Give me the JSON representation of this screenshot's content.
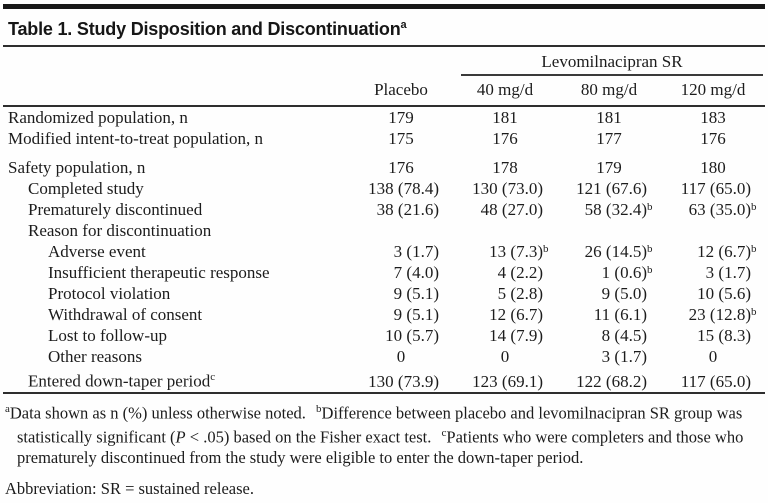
{
  "title": {
    "text": "Table 1. Study Disposition and Discontinuation",
    "superscript": "a"
  },
  "header": {
    "spanner": "Levomilnacipran SR",
    "stub": "",
    "columns": [
      "Placebo",
      "40 mg/d",
      "80 mg/d",
      "120 mg/d"
    ]
  },
  "table": {
    "rows": [
      {
        "label": "Randomized population, n",
        "indent": 0,
        "values": [
          "179",
          "181",
          "181",
          "183"
        ]
      },
      {
        "label": "Modified intent-to-treat population, n",
        "indent": 0,
        "values": [
          "175",
          "176",
          "177",
          "176"
        ]
      },
      {
        "label": "Safety population, n",
        "indent": 0,
        "gap_before": true,
        "values": [
          "176",
          "178",
          "179",
          "180"
        ]
      },
      {
        "label": "Completed study",
        "indent": 1,
        "values": [
          "138 (78.4)",
          "130 (73.0)",
          "121 (67.6)",
          "117 (65.0)"
        ]
      },
      {
        "label": "Prematurely discontinued",
        "indent": 1,
        "values": [
          "38 (21.6)",
          "48 (27.0)",
          "58 (32.4)^b",
          "63 (35.0)^b"
        ]
      },
      {
        "label": "Reason for discontinuation",
        "indent": 1,
        "values": [
          "",
          "",
          "",
          ""
        ]
      },
      {
        "label": "Adverse event",
        "indent": 2,
        "values": [
          "3 (1.7)",
          "13 (7.3)^b",
          "26 (14.5)^b",
          "12 (6.7)^b"
        ]
      },
      {
        "label": "Insufficient therapeutic response",
        "indent": 2,
        "values": [
          "7 (4.0)",
          "4 (2.2)",
          "1 (0.6)^b",
          "3 (1.7)"
        ]
      },
      {
        "label": "Protocol violation",
        "indent": 2,
        "values": [
          "9 (5.1)",
          "5 (2.8)",
          "9 (5.0)",
          "10 (5.6)"
        ]
      },
      {
        "label": "Withdrawal of consent",
        "indent": 2,
        "values": [
          "9 (5.1)",
          "12 (6.7)",
          "11 (6.1)",
          "23 (12.8)^b"
        ]
      },
      {
        "label": "Lost to follow-up",
        "indent": 2,
        "values": [
          "10 (5.7)",
          "14 (7.9)",
          "8 (4.5)",
          "15 (8.3)"
        ]
      },
      {
        "label": "Other reasons",
        "indent": 2,
        "values": [
          "0",
          "0",
          "3 (1.7)",
          "0"
        ]
      },
      {
        "label": "Entered down-taper period",
        "label_superscript": "c",
        "indent": 1,
        "values": [
          "130 (73.9)",
          "123 (69.1)",
          "122 (68.2)",
          "117 (65.0)"
        ]
      }
    ]
  },
  "footnotes": {
    "notes": [
      {
        "marker": "a",
        "text": "Data shown as n (%) unless otherwise noted."
      },
      {
        "marker": "b",
        "pre": "Difference between placebo and levomilnacipran SR group was statistically significant (",
        "italic": "P",
        "post": " < .05) based on the Fisher exact test."
      },
      {
        "marker": "c",
        "text": "Patients who were completers and those who prematurely discontinued from the study were eligible to enter the down-taper period."
      }
    ],
    "abbreviation": "Abbreviation: SR = sustained release."
  }
}
